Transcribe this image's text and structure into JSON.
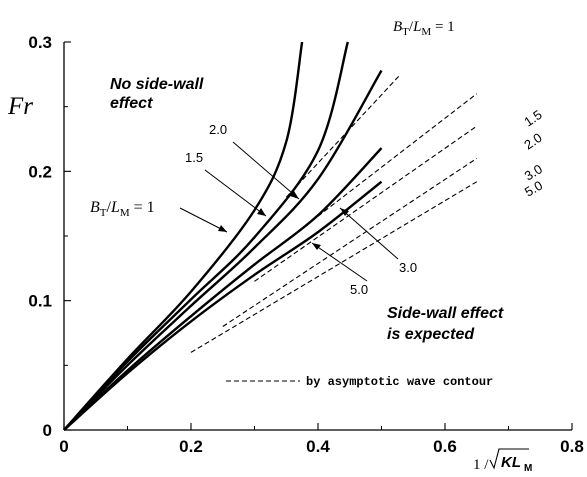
{
  "chart_data": {
    "type": "line",
    "xlabel": "1 /√KL_M",
    "ylabel": "Fr",
    "xlim": [
      0,
      0.8
    ],
    "ylim": [
      0,
      0.3
    ],
    "xticks": [
      0,
      0.2,
      0.4,
      0.6,
      0.8
    ],
    "xtick_labels": [
      "0",
      "0.2",
      "0.4",
      "0.6",
      "0.8"
    ],
    "yticks": [
      0,
      0.1,
      0.2,
      0.3
    ],
    "ytick_labels": [
      "0",
      "0.1",
      "0.2",
      "0.3"
    ],
    "grid": false,
    "series": [
      {
        "label": "1",
        "style": "solid",
        "x": [
          0,
          0.1,
          0.2,
          0.3,
          0.35,
          0.375
        ],
        "y": [
          0,
          0.055,
          0.107,
          0.17,
          0.223,
          0.3
        ]
      },
      {
        "label": "1.5",
        "style": "solid",
        "x": [
          0,
          0.1,
          0.2,
          0.3,
          0.4,
          0.447
        ],
        "y": [
          0,
          0.053,
          0.101,
          0.149,
          0.216,
          0.3
        ]
      },
      {
        "label": "2.0",
        "style": "solid",
        "x": [
          0,
          0.1,
          0.2,
          0.3,
          0.4,
          0.5
        ],
        "y": [
          0,
          0.05,
          0.096,
          0.141,
          0.194,
          0.278
        ]
      },
      {
        "label": "3.0",
        "style": "solid",
        "x": [
          0,
          0.1,
          0.2,
          0.3,
          0.4,
          0.5
        ],
        "y": [
          0,
          0.046,
          0.088,
          0.128,
          0.166,
          0.218
        ]
      },
      {
        "label": "5.0",
        "style": "solid",
        "x": [
          0,
          0.1,
          0.2,
          0.3,
          0.4,
          0.5
        ],
        "y": [
          0,
          0.044,
          0.084,
          0.12,
          0.153,
          0.192
        ]
      },
      {
        "label": "1",
        "style": "dashed",
        "x": [
          0.35,
          0.53
        ],
        "y": [
          0.18,
          0.275
        ]
      },
      {
        "label": "1.5",
        "style": "dashed",
        "x": [
          0.32,
          0.65
        ],
        "y": [
          0.135,
          0.26
        ]
      },
      {
        "label": "2.0",
        "style": "dashed",
        "x": [
          0.3,
          0.65
        ],
        "y": [
          0.115,
          0.235
        ]
      },
      {
        "label": "3.0",
        "style": "dashed",
        "x": [
          0.25,
          0.65
        ],
        "y": [
          0.08,
          0.21
        ]
      },
      {
        "label": "5.0",
        "style": "dashed",
        "x": [
          0.2,
          0.65
        ],
        "y": [
          0.06,
          0.192
        ]
      }
    ],
    "annotations": {
      "top_param": "B_T/L_M = 1",
      "left_param": "B_T/L_M = 1",
      "no_effect": [
        "No side-wall",
        "effect"
      ],
      "effect_expected": [
        "Side-wall effect",
        "is expected"
      ],
      "legend": "by asymptotic wave contour"
    }
  }
}
